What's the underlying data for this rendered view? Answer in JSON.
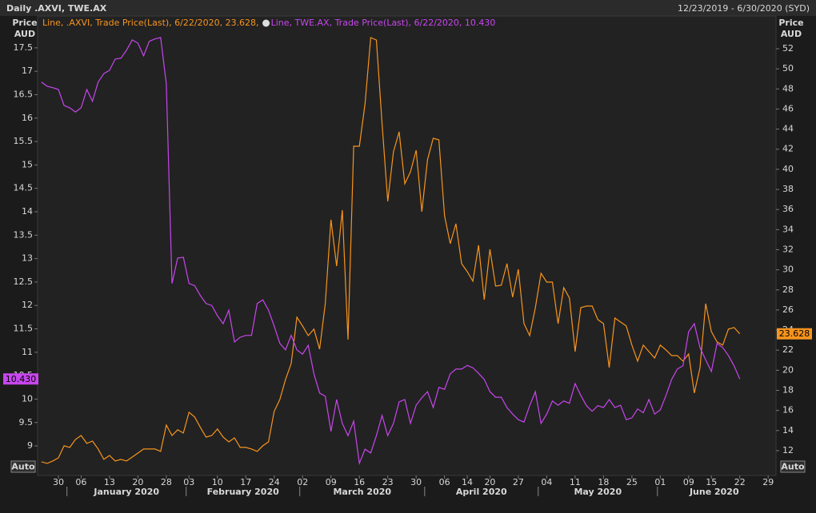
{
  "chart_data": {
    "type": "line",
    "title": "Daily .AXVI, TWE.AX",
    "subtitle": "12/23/2019 - 6/30/2020 (SYD)",
    "ylabel": [
      "Price",
      "AUD"
    ],
    "y2label": [
      "Price",
      "AUD"
    ],
    "auto_buttons": [
      "Auto",
      "Auto"
    ],
    "months": [
      "January 2020",
      "February 2020",
      "March 2020",
      "April 2020",
      "May 2020",
      "June 2020"
    ],
    "categories": [
      null,
      null,
      null,
      "30",
      null,
      null,
      null,
      "06",
      null,
      null,
      null,
      null,
      "13",
      null,
      null,
      null,
      null,
      "20",
      null,
      null,
      null,
      null,
      "28",
      null,
      null,
      null,
      "03",
      null,
      null,
      null,
      null,
      "10",
      null,
      null,
      null,
      null,
      "17",
      null,
      null,
      null,
      null,
      "24",
      null,
      null,
      null,
      null,
      "02",
      null,
      null,
      null,
      null,
      "09",
      null,
      null,
      null,
      null,
      "16",
      null,
      null,
      null,
      null,
      "23",
      null,
      null,
      null,
      null,
      "30",
      null,
      null,
      null,
      null,
      "06",
      null,
      null,
      null,
      "14",
      null,
      null,
      null,
      "20",
      null,
      null,
      null,
      null,
      "27",
      null,
      null,
      null,
      null,
      "04",
      null,
      null,
      null,
      null,
      "11",
      null,
      null,
      null,
      null,
      "18",
      null,
      null,
      null,
      null,
      "25",
      null,
      null,
      null,
      null,
      "01",
      null,
      null,
      null,
      null,
      "09",
      null,
      null,
      null,
      "15",
      null,
      null,
      null,
      null,
      "22",
      null,
      null,
      null,
      null,
      "29"
    ],
    "ylim": [
      8.37,
      18.18
    ],
    "yticks": [
      9,
      9.5,
      10,
      10.5,
      11,
      11.5,
      12,
      12.5,
      13,
      13.5,
      14,
      14.5,
      15,
      15.5,
      16,
      16.5,
      17,
      17.5
    ],
    "y2lim": [
      9.53,
      55.26
    ],
    "y2ticks": [
      12,
      14,
      16,
      18,
      20,
      22,
      24,
      26,
      28,
      30,
      32,
      34,
      36,
      38,
      40,
      42,
      44,
      46,
      48,
      50,
      52
    ],
    "grid": false,
    "series": [
      {
        "name": "Line, .AXVI, Trade Price(Last), 6/22/2020, 23.628,",
        "color": "#f7941d",
        "axis": "y2",
        "last_label": "23.628",
        "values": [
          10.89,
          10.73,
          10.97,
          11.28,
          12.48,
          12.32,
          13.11,
          13.51,
          12.72,
          12.95,
          12.16,
          11.13,
          11.52,
          10.97,
          11.13,
          10.97,
          11.36,
          11.76,
          12.16,
          12.16,
          12.16,
          11.92,
          14.54,
          13.51,
          14.07,
          13.75,
          15.82,
          15.34,
          14.31,
          13.35,
          13.51,
          14.15,
          13.35,
          12.87,
          13.27,
          12.32,
          12.32,
          12.16,
          11.92,
          12.48,
          12.87,
          15.9,
          17.09,
          19.08,
          20.67,
          25.28,
          24.41,
          23.45,
          24.09,
          22.1,
          26.63,
          34.98,
          30.37,
          35.94,
          23.05,
          42.3,
          42.3,
          46.51,
          53.11,
          52.87,
          44.52,
          36.81,
          41.74,
          43.73,
          38.56,
          39.75,
          41.9,
          35.78,
          40.95,
          43.09,
          42.93,
          35.38,
          32.6,
          34.58,
          30.61,
          29.81,
          28.86,
          32.44,
          27.03,
          32.04,
          28.38,
          28.46,
          30.61,
          27.27,
          30.05,
          24.64,
          23.45,
          26.23,
          29.65,
          28.78,
          28.78,
          24.64,
          28.22,
          27.19,
          21.86,
          26.23,
          26.39,
          26.39,
          25.04,
          24.64,
          20.27,
          25.2,
          24.8,
          24.41,
          22.5,
          20.91,
          22.5,
          21.86,
          21.22,
          22.5,
          22.02,
          21.46,
          21.46,
          20.91,
          21.62,
          17.73,
          20.27,
          26.63,
          23.85,
          22.82,
          22.5,
          24.09,
          24.25,
          23.628,
          null,
          null,
          null,
          null,
          null
        ]
      },
      {
        "name": "Line, TWE.AX, Trade Price(Last), 6/22/2020, 10.430",
        "color": "#c846ee",
        "axis": "y",
        "last_label": "10.430",
        "values": [
          16.77,
          16.68,
          16.65,
          16.61,
          16.27,
          16.22,
          16.13,
          16.22,
          16.61,
          16.36,
          16.77,
          16.95,
          17.02,
          17.26,
          17.28,
          17.45,
          17.67,
          17.6,
          17.33,
          17.64,
          17.69,
          17.72,
          16.73,
          12.47,
          13.01,
          13.03,
          12.47,
          12.42,
          12.21,
          12.04,
          12.0,
          11.78,
          11.61,
          11.9,
          11.22,
          11.32,
          11.36,
          11.36,
          12.04,
          12.12,
          11.9,
          11.56,
          11.19,
          11.05,
          11.36,
          11.05,
          10.96,
          11.15,
          10.54,
          10.13,
          10.06,
          9.31,
          9.99,
          9.48,
          9.22,
          9.53,
          8.63,
          8.93,
          8.85,
          9.22,
          9.65,
          9.22,
          9.48,
          9.94,
          9.99,
          9.48,
          9.87,
          10.03,
          10.16,
          9.82,
          10.25,
          10.21,
          10.54,
          10.64,
          10.64,
          10.72,
          10.67,
          10.55,
          10.42,
          10.16,
          10.04,
          10.04,
          9.82,
          9.68,
          9.56,
          9.51,
          9.86,
          10.16,
          9.48,
          9.68,
          9.96,
          9.87,
          9.96,
          9.91,
          10.33,
          10.08,
          9.86,
          9.74,
          9.86,
          9.82,
          9.99,
          9.82,
          9.87,
          9.56,
          9.6,
          9.79,
          9.71,
          9.99,
          9.68,
          9.77,
          10.08,
          10.42,
          10.64,
          10.71,
          11.44,
          11.61,
          11.1,
          10.84,
          10.59,
          11.19,
          11.1,
          10.93,
          10.71,
          10.43,
          null,
          null,
          null,
          null,
          null
        ]
      }
    ]
  }
}
